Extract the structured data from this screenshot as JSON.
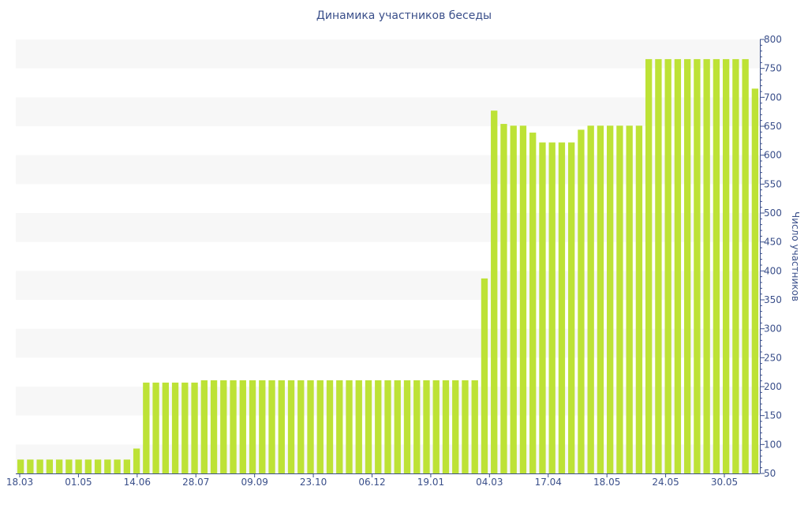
{
  "chart_data": {
    "type": "bar",
    "title": "Динамика участников беседы",
    "xlabel": "",
    "ylabel": "Число участников",
    "ylim": [
      50,
      800
    ],
    "yticks": [
      50,
      100,
      150,
      200,
      250,
      300,
      350,
      400,
      450,
      500,
      550,
      600,
      650,
      700,
      750,
      800
    ],
    "y_axis_position": "right",
    "grid": "alternating horizontal bands",
    "x_tick_labels": [
      "18.03",
      "01.05",
      "14.06",
      "28.07",
      "09.09",
      "23.10",
      "06.12",
      "19.01",
      "04.03",
      "17.04",
      "18.05",
      "24.05",
      "30.05"
    ],
    "values": [
      74,
      74,
      74,
      74,
      74,
      74,
      74,
      74,
      74,
      74,
      74,
      74,
      93,
      207,
      207,
      207,
      207,
      207,
      207,
      211,
      211,
      211,
      211,
      211,
      211,
      211,
      211,
      211,
      211,
      211,
      211,
      211,
      211,
      211,
      211,
      211,
      211,
      211,
      211,
      211,
      211,
      211,
      211,
      211,
      211,
      211,
      211,
      211,
      387,
      677,
      654,
      651,
      651,
      639,
      622,
      622,
      622,
      622,
      644,
      651,
      651,
      651,
      651,
      651,
      651,
      766,
      766,
      766,
      766,
      766,
      766,
      766,
      766,
      766,
      766,
      766,
      715
    ],
    "colors": {
      "bar": "#bde236",
      "band": "#f7f7f7",
      "axis": "#3a4f8a",
      "text": "#3a4f8a"
    }
  }
}
